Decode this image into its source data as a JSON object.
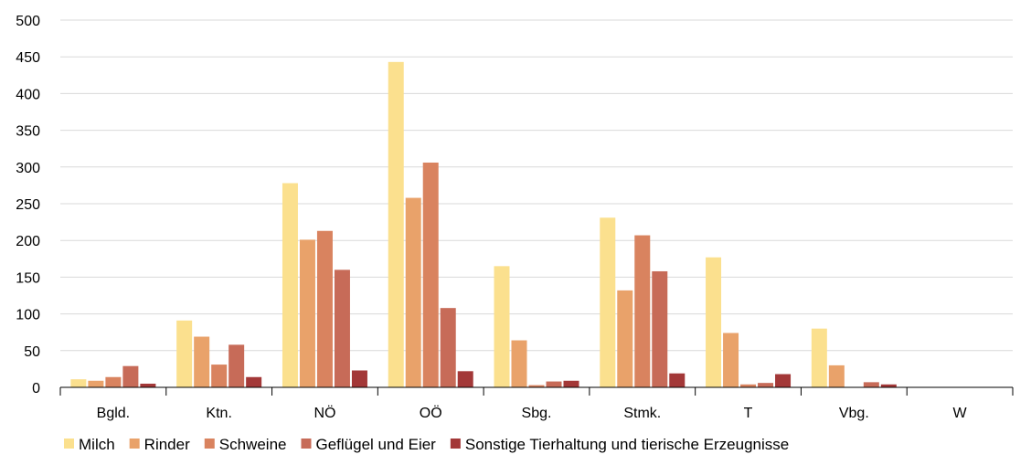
{
  "chart_data": {
    "type": "bar",
    "title": "",
    "xlabel": "",
    "ylabel": "",
    "ylim": [
      0,
      500
    ],
    "yticks": [
      0,
      50,
      100,
      150,
      200,
      250,
      300,
      350,
      400,
      450,
      500
    ],
    "grid": "horizontal",
    "legend_position": "bottom",
    "categories": [
      "Bgld.",
      "Ktn.",
      "NÖ",
      "OÖ",
      "Sbg.",
      "Stmk.",
      "T",
      "Vbg.",
      "W"
    ],
    "series": [
      {
        "name": "Milch",
        "color": "#FBE08E",
        "values": [
          11,
          91,
          278,
          443,
          165,
          231,
          177,
          80,
          0
        ]
      },
      {
        "name": "Rinder",
        "color": "#E9A26A",
        "values": [
          9,
          69,
          201,
          258,
          64,
          132,
          74,
          30,
          0
        ]
      },
      {
        "name": "Schweine",
        "color": "#D9835F",
        "values": [
          14,
          31,
          213,
          306,
          3,
          207,
          4,
          0,
          0
        ]
      },
      {
        "name": "Geflügel und Eier",
        "color": "#C76B58",
        "values": [
          29,
          58,
          160,
          108,
          8,
          158,
          6,
          7,
          0
        ]
      },
      {
        "name": "Sonstige Tierhaltung und tierische Erzeugnisse",
        "color": "#A33838",
        "values": [
          5,
          14,
          23,
          22,
          9,
          19,
          18,
          4,
          0
        ]
      }
    ]
  }
}
